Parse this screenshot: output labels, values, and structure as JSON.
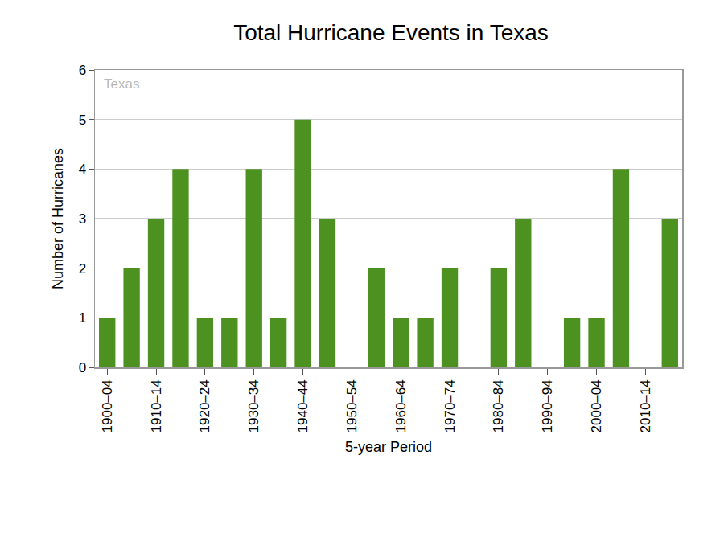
{
  "chart_data": {
    "type": "bar",
    "title": "Total Hurricane Events in Texas",
    "x_label": "5-year Period",
    "y_label": "Number of Hurricanes",
    "annotations": [
      "Texas"
    ],
    "categories": [
      "1900–04",
      null,
      "1910–14",
      null,
      "1920–24",
      null,
      "1930–34",
      null,
      "1940–44",
      null,
      "1950–54",
      null,
      "1960–64",
      null,
      "1970–74",
      null,
      "1980–84",
      null,
      "1990–94",
      null,
      "2000–04",
      null,
      "2010–14",
      null
    ],
    "values": [
      1,
      2,
      3,
      4,
      1,
      1,
      4,
      1,
      5,
      3,
      0,
      2,
      1,
      1,
      2,
      0,
      2,
      3,
      0,
      1,
      1,
      4,
      0,
      3
    ],
    "color": "#4d9221",
    "ylim": [
      0,
      6
    ],
    "yticks": [
      0,
      1,
      2,
      3,
      4,
      5,
      6
    ],
    "grid": true
  }
}
